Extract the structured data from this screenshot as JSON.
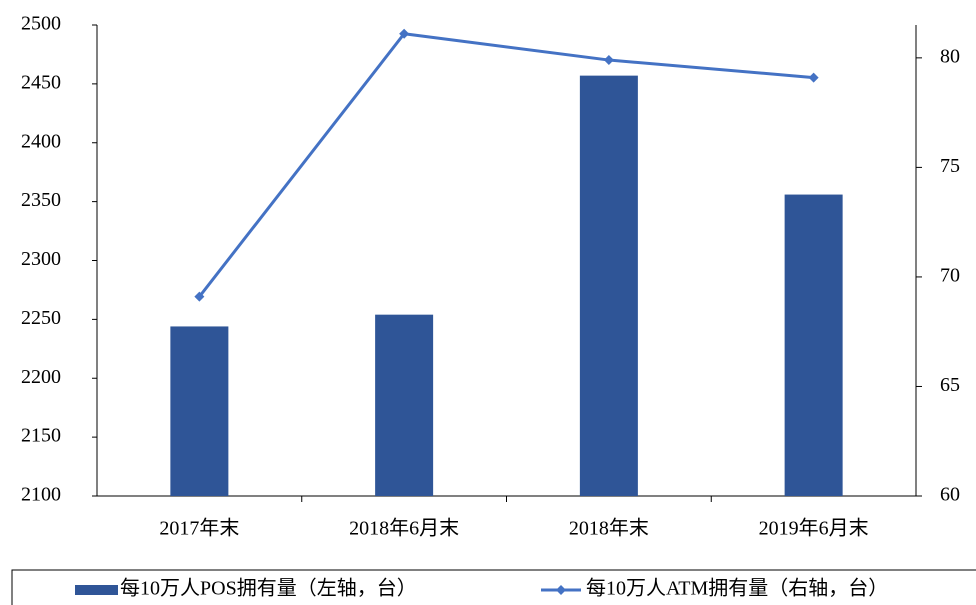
{
  "chart_data": {
    "type": "bar_line",
    "categories": [
      "2017年末",
      "2018年6月末",
      "2018年末",
      "2019年6月末"
    ],
    "series": [
      {
        "name": "每10万人POS拥有量（左轴，台）",
        "type": "bar",
        "color": "#2f5597",
        "values": [
          2244,
          2254,
          2457,
          2356
        ]
      },
      {
        "name": "每10万人ATM拥有量（右轴，台）",
        "type": "line",
        "axis": "y2",
        "color": "#4472c4",
        "values": [
          69.1,
          81.1,
          79.9,
          79.1
        ]
      }
    ],
    "ylim": [
      2100,
      2500
    ],
    "yticks": [
      2100,
      2150,
      2200,
      2250,
      2300,
      2350,
      2400,
      2450,
      2500
    ],
    "y2lim": [
      60,
      81.5
    ],
    "y2ticks": [
      60,
      65,
      70,
      75,
      80
    ],
    "legend": "bottom"
  }
}
